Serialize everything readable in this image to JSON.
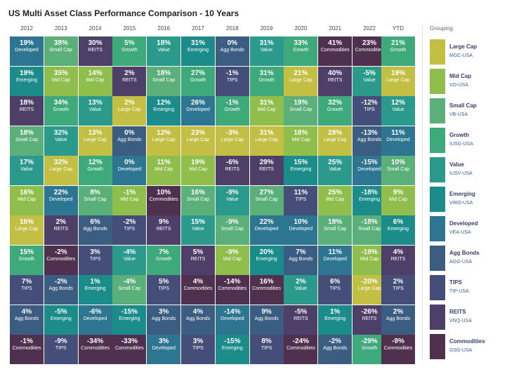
{
  "title": "US Multi Asset Class Performance Comparison - 10 Years",
  "grouping_title": "Grouping",
  "colors": {
    "Large Cap": "#c3bf45",
    "Mid Cap": "#8fbe4c",
    "Small Cap": "#5bb07a",
    "Growth": "#3ea97a",
    "Value": "#2b9a8c",
    "Emerging": "#1b8c8a",
    "Developed": "#2d7591",
    "Agg Bonds": "#3b5d82",
    "TIPS": "#454d79",
    "REITS": "#4d3f67",
    "Commodities": "#50304f"
  },
  "legend": [
    {
      "name": "Large Cap",
      "ticker": "MGC-USA"
    },
    {
      "name": "Mid Cap",
      "ticker": "VO-USA"
    },
    {
      "name": "Small Cap",
      "ticker": "VB-USA"
    },
    {
      "name": "Growth",
      "ticker": "IUSG-USA"
    },
    {
      "name": "Value",
      "ticker": "IUSV-USA"
    },
    {
      "name": "Emerging",
      "ticker": "VWO-USA"
    },
    {
      "name": "Developed",
      "ticker": "VEA-USA"
    },
    {
      "name": "Agg Bonds",
      "ticker": "AGG-USA"
    },
    {
      "name": "TIPS",
      "ticker": "TIP-USA"
    },
    {
      "name": "REITS",
      "ticker": "VNQ-USA"
    },
    {
      "name": "Commodities",
      "ticker": "GSG-USA"
    }
  ],
  "chart_data": {
    "type": "table",
    "title": "US Multi Asset Class Performance Comparison - 10 Years",
    "columns": [
      {
        "year": "2012",
        "cells": [
          {
            "value": "19%",
            "label": "Developed"
          },
          {
            "value": "19%",
            "label": "Emerging"
          },
          {
            "value": "18%",
            "label": "REITS"
          },
          {
            "value": "18%",
            "label": "Small Cap"
          },
          {
            "value": "17%",
            "label": "Value"
          },
          {
            "value": "16%",
            "label": "Mid Cap"
          },
          {
            "value": "16%",
            "label": "Large Cap"
          },
          {
            "value": "15%",
            "label": "Growth"
          },
          {
            "value": "7%",
            "label": "TIPS"
          },
          {
            "value": "4%",
            "label": "Agg Bonds"
          },
          {
            "value": "-1%",
            "label": "Commodities"
          }
        ]
      },
      {
        "year": "2013",
        "cells": [
          {
            "value": "38%",
            "label": "Small Cap"
          },
          {
            "value": "35%",
            "label": "Mid Cap"
          },
          {
            "value": "34%",
            "label": "Growth"
          },
          {
            "value": "32%",
            "label": "Value"
          },
          {
            "value": "32%",
            "label": "Large Cap"
          },
          {
            "value": "22%",
            "label": "Developed"
          },
          {
            "value": "2%",
            "label": "REITS"
          },
          {
            "value": "-2%",
            "label": "Commodities"
          },
          {
            "value": "-2%",
            "label": "Agg Bonds"
          },
          {
            "value": "-5%",
            "label": "Emerging"
          },
          {
            "value": "-9%",
            "label": "TIPS"
          }
        ]
      },
      {
        "year": "2014",
        "cells": [
          {
            "value": "30%",
            "label": "REITS"
          },
          {
            "value": "14%",
            "label": "Mid Cap"
          },
          {
            "value": "13%",
            "label": "Value"
          },
          {
            "value": "13%",
            "label": "Large Cap"
          },
          {
            "value": "12%",
            "label": "Growth"
          },
          {
            "value": "8%",
            "label": "Small Cap"
          },
          {
            "value": "6%",
            "label": "Agg Bonds"
          },
          {
            "value": "3%",
            "label": "TIPS"
          },
          {
            "value": "1%",
            "label": "Emerging"
          },
          {
            "value": "-6%",
            "label": "Developed"
          },
          {
            "value": "-34%",
            "label": "Commodities"
          }
        ]
      },
      {
        "year": "2015",
        "cells": [
          {
            "value": "5%",
            "label": "Growth"
          },
          {
            "value": "2%",
            "label": "REITS"
          },
          {
            "value": "2%",
            "label": "Large Cap"
          },
          {
            "value": "0%",
            "label": "Agg Bonds"
          },
          {
            "value": "0%",
            "label": "Developed"
          },
          {
            "value": "-1%",
            "label": "Mid Cap"
          },
          {
            "value": "-2%",
            "label": "TIPS"
          },
          {
            "value": "-4%",
            "label": "Value"
          },
          {
            "value": "-4%",
            "label": "Small Cap"
          },
          {
            "value": "-15%",
            "label": "Emerging"
          },
          {
            "value": "-33%",
            "label": "Commodities"
          }
        ]
      },
      {
        "year": "2016",
        "cells": [
          {
            "value": "18%",
            "label": "Value"
          },
          {
            "value": "18%",
            "label": "Small Cap"
          },
          {
            "value": "12%",
            "label": "Emerging"
          },
          {
            "value": "12%",
            "label": "Large Cap"
          },
          {
            "value": "11%",
            "label": "Mid Cap"
          },
          {
            "value": "10%",
            "label": "Commodities"
          },
          {
            "value": "9%",
            "label": "REITS"
          },
          {
            "value": "7%",
            "label": "Growth"
          },
          {
            "value": "5%",
            "label": "TIPS"
          },
          {
            "value": "3%",
            "label": "Agg Bonds"
          },
          {
            "value": "3%",
            "label": "Developed"
          }
        ]
      },
      {
        "year": "2017",
        "cells": [
          {
            "value": "31%",
            "label": "Emerging"
          },
          {
            "value": "27%",
            "label": "Growth"
          },
          {
            "value": "26%",
            "label": "Developed"
          },
          {
            "value": "23%",
            "label": "Large Cap"
          },
          {
            "value": "19%",
            "label": "Mid Cap"
          },
          {
            "value": "16%",
            "label": "Small Cap"
          },
          {
            "value": "15%",
            "label": "Value"
          },
          {
            "value": "5%",
            "label": "REITS"
          },
          {
            "value": "4%",
            "label": "Commodities"
          },
          {
            "value": "4%",
            "label": "Agg Bonds"
          },
          {
            "value": "3%",
            "label": "TIPS"
          }
        ]
      },
      {
        "year": "2018",
        "cells": [
          {
            "value": "0%",
            "label": "Agg Bonds"
          },
          {
            "value": "-1%",
            "label": "TIPS"
          },
          {
            "value": "-1%",
            "label": "Growth"
          },
          {
            "value": "-3%",
            "label": "Large Cap"
          },
          {
            "value": "-6%",
            "label": "REITS"
          },
          {
            "value": "-9%",
            "label": "Value"
          },
          {
            "value": "-9%",
            "label": "Small Cap"
          },
          {
            "value": "-9%",
            "label": "Mid Cap"
          },
          {
            "value": "-14%",
            "label": "Commodities"
          },
          {
            "value": "-14%",
            "label": "Developed"
          },
          {
            "value": "-15%",
            "label": "Emerging"
          }
        ]
      },
      {
        "year": "2019",
        "cells": [
          {
            "value": "31%",
            "label": "Value"
          },
          {
            "value": "31%",
            "label": "Growth"
          },
          {
            "value": "31%",
            "label": "Mid Cap"
          },
          {
            "value": "31%",
            "label": "Large Cap"
          },
          {
            "value": "29%",
            "label": "REITS"
          },
          {
            "value": "27%",
            "label": "Small Cap"
          },
          {
            "value": "22%",
            "label": "Developed"
          },
          {
            "value": "20%",
            "label": "Emerging"
          },
          {
            "value": "16%",
            "label": "Commodities"
          },
          {
            "value": "9%",
            "label": "Agg Bonds"
          },
          {
            "value": "8%",
            "label": "TIPS"
          }
        ]
      },
      {
        "year": "2020",
        "cells": [
          {
            "value": "33%",
            "label": "Growth"
          },
          {
            "value": "21%",
            "label": "Large Cap"
          },
          {
            "value": "19%",
            "label": "Small Cap"
          },
          {
            "value": "18%",
            "label": "Mid Cap"
          },
          {
            "value": "15%",
            "label": "Emerging"
          },
          {
            "value": "11%",
            "label": "TIPS"
          },
          {
            "value": "10%",
            "label": "Developed"
          },
          {
            "value": "7%",
            "label": "Agg Bonds"
          },
          {
            "value": "2%",
            "label": "Value"
          },
          {
            "value": "-5%",
            "label": "REITS"
          },
          {
            "value": "-24%",
            "label": "Commodities"
          }
        ]
      },
      {
        "year": "2021",
        "cells": [
          {
            "value": "41%",
            "label": "Commodities"
          },
          {
            "value": "40%",
            "label": "REITS"
          },
          {
            "value": "32%",
            "label": "Growth"
          },
          {
            "value": "28%",
            "label": "Large Cap"
          },
          {
            "value": "25%",
            "label": "Value"
          },
          {
            "value": "25%",
            "label": "Mid Cap"
          },
          {
            "value": "18%",
            "label": "Small Cap"
          },
          {
            "value": "11%",
            "label": "Developed"
          },
          {
            "value": "6%",
            "label": "TIPS"
          },
          {
            "value": "1%",
            "label": "Emerging"
          },
          {
            "value": "-2%",
            "label": "Agg Bonds"
          }
        ]
      },
      {
        "year": "2022",
        "cells": [
          {
            "value": "23%",
            "label": "Commodities"
          },
          {
            "value": "-5%",
            "label": "Value"
          },
          {
            "value": "-12%",
            "label": "TIPS"
          },
          {
            "value": "-13%",
            "label": "Agg Bonds"
          },
          {
            "value": "-15%",
            "label": "Developed"
          },
          {
            "value": "-18%",
            "label": "Emerging"
          },
          {
            "value": "-18%",
            "label": "Small Cap"
          },
          {
            "value": "-19%",
            "label": "Mid Cap"
          },
          {
            "value": "-20%",
            "label": "Large Cap"
          },
          {
            "value": "-26%",
            "label": "REITS"
          },
          {
            "value": "-29%",
            "label": "Growth"
          }
        ]
      },
      {
        "year": "YTD",
        "cells": [
          {
            "value": "21%",
            "label": "Growth"
          },
          {
            "value": "19%",
            "label": "Large Cap"
          },
          {
            "value": "12%",
            "label": "Value"
          },
          {
            "value": "11%",
            "label": "Developed"
          },
          {
            "value": "10%",
            "label": "Small Cap"
          },
          {
            "value": "9%",
            "label": "Mid Cap"
          },
          {
            "value": "6%",
            "label": "Emerging"
          },
          {
            "value": "4%",
            "label": "REITS"
          },
          {
            "value": "2%",
            "label": "TIPS"
          },
          {
            "value": "2%",
            "label": "Agg Bonds"
          },
          {
            "value": "-9%",
            "label": "Commodities"
          }
        ]
      }
    ]
  }
}
